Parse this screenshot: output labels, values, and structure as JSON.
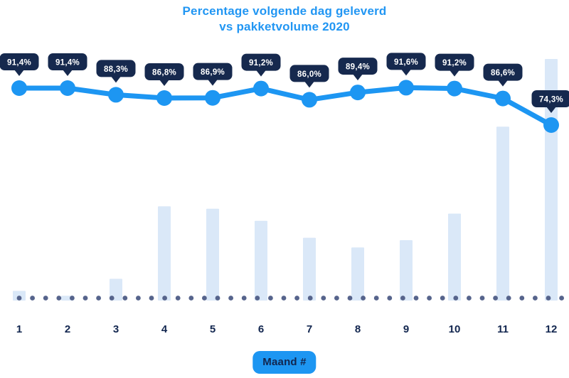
{
  "title": {
    "line1": "Percentage volgende dag geleverd",
    "line2": "vs pakketvolume 2020"
  },
  "x_axis": {
    "badge_label": "Maand #",
    "tick_labels": [
      "1",
      "2",
      "3",
      "4",
      "5",
      "6",
      "7",
      "8",
      "9",
      "10",
      "11",
      "12"
    ]
  },
  "colors": {
    "title_blue": "#2196f3",
    "accent_blue": "#1d96f2",
    "badge_navy": "#16294e",
    "badge_text": "#ffffff",
    "axis_navy": "#12264f",
    "bar_fill": "#dae8f8",
    "dot_slate": "#56648c",
    "background": "#ffffff"
  },
  "chart_data": {
    "type": "combo",
    "title": "Percentage volgende dag geleverd vs pakketvolume 2020",
    "categories": [
      "1",
      "2",
      "3",
      "4",
      "5",
      "6",
      "7",
      "8",
      "9",
      "10",
      "11",
      "12"
    ],
    "xlabel": "Maand #",
    "grid": false,
    "legend": "none",
    "y_axis_shown": false,
    "series": [
      {
        "name": "Percentage volgende dag geleverd",
        "type": "line",
        "unit": "%",
        "values": [
          91.4,
          91.4,
          88.3,
          86.8,
          86.9,
          91.2,
          86.0,
          89.4,
          91.6,
          91.2,
          86.6,
          74.3
        ],
        "point_labels": [
          "91,4%",
          "91,4%",
          "88,3%",
          "86,8%",
          "86,9%",
          "91,2%",
          "86,0%",
          "89,4%",
          "91,6%",
          "91,2%",
          "86,6%",
          "74,3%"
        ]
      },
      {
        "name": "Pakketvolume 2020",
        "type": "bar",
        "unit": "relative-index-max-100 (no value axis shown)",
        "values": [
          4,
          2,
          9,
          39,
          38,
          33,
          26,
          22,
          25,
          36,
          72,
          100
        ]
      }
    ]
  }
}
